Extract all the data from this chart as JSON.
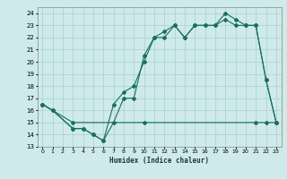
{
  "xlabel": "Humidex (Indice chaleur)",
  "xlim": [
    -0.5,
    23.5
  ],
  "ylim": [
    13,
    24.5
  ],
  "yticks": [
    13,
    14,
    15,
    16,
    17,
    18,
    19,
    20,
    21,
    22,
    23,
    24
  ],
  "xticks": [
    0,
    1,
    2,
    3,
    4,
    5,
    6,
    7,
    8,
    9,
    10,
    11,
    12,
    13,
    14,
    15,
    16,
    17,
    18,
    19,
    20,
    21,
    22,
    23
  ],
  "bg_color": "#ceeaea",
  "grid_color": "#aacfcf",
  "line_color": "#1a6e5e",
  "line1_x": [
    0,
    1,
    3,
    4,
    5,
    6,
    7,
    8,
    9,
    10,
    11,
    12,
    13,
    14,
    15,
    16,
    17,
    18,
    19,
    20,
    21,
    22,
    23
  ],
  "line1_y": [
    16.5,
    16.0,
    14.5,
    14.5,
    14.0,
    13.5,
    16.5,
    17.5,
    18.0,
    20.0,
    22.0,
    22.5,
    23.0,
    22.0,
    23.0,
    23.0,
    23.0,
    24.0,
    23.5,
    23.0,
    23.0,
    18.5,
    15.0
  ],
  "line2_x": [
    0,
    1,
    3,
    4,
    5,
    6,
    7,
    8,
    9,
    10,
    11,
    12,
    13,
    14,
    15,
    16,
    17,
    18,
    19,
    20,
    21,
    22,
    23
  ],
  "line2_y": [
    16.5,
    16.0,
    14.5,
    14.5,
    14.0,
    13.5,
    15.0,
    17.0,
    17.0,
    20.5,
    22.0,
    22.0,
    23.0,
    22.0,
    23.0,
    23.0,
    23.0,
    23.5,
    23.0,
    23.0,
    23.0,
    18.5,
    15.0
  ],
  "line3_x": [
    0,
    3,
    10,
    21,
    22,
    23
  ],
  "line3_y": [
    16.5,
    15.0,
    15.0,
    15.0,
    15.0,
    15.0
  ]
}
